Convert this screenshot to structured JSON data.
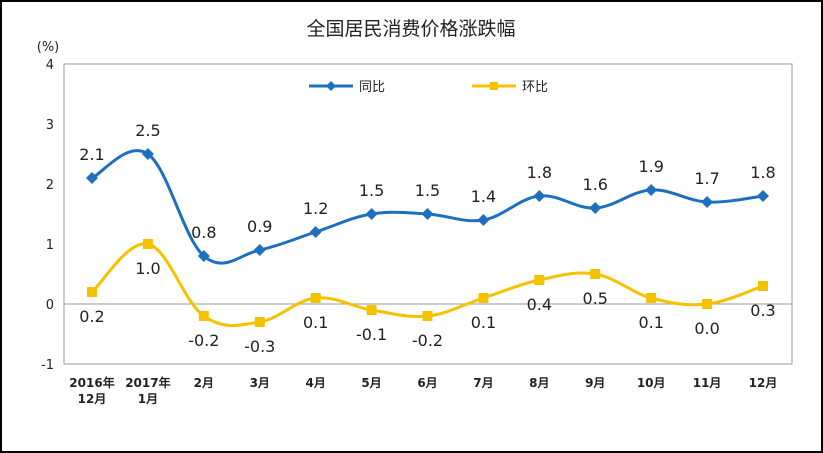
{
  "chart_data": {
    "type": "line",
    "title": "全国居民消费价格涨跌幅",
    "ylabel": "(%)",
    "ylim": [
      -1,
      4
    ],
    "yticks": [
      "4",
      "3",
      "2",
      "1",
      "0",
      "-1"
    ],
    "categories": [
      [
        "2016年",
        "12月"
      ],
      [
        "2017年",
        "1月"
      ],
      [
        "2月"
      ],
      [
        "3月"
      ],
      [
        "4月"
      ],
      [
        "5月"
      ],
      [
        "6月"
      ],
      [
        "7月"
      ],
      [
        "8月"
      ],
      [
        "9月"
      ],
      [
        "10月"
      ],
      [
        "11月"
      ],
      [
        "12月"
      ]
    ],
    "legend_position": "top-center",
    "series": [
      {
        "name": "同比",
        "color": "#1f6fbf",
        "marker": "diamond",
        "values": [
          2.1,
          2.5,
          0.8,
          0.9,
          1.2,
          1.5,
          1.5,
          1.4,
          1.8,
          1.6,
          1.9,
          1.7,
          1.8
        ],
        "labels": [
          "2.1",
          "2.5",
          "0.8",
          "0.9",
          "1.2",
          "1.5",
          "1.5",
          "1.4",
          "1.8",
          "1.6",
          "1.9",
          "1.7",
          "1.8"
        ]
      },
      {
        "name": "环比",
        "color": "#f5c200",
        "marker": "square",
        "values": [
          0.2,
          1.0,
          -0.2,
          -0.3,
          0.1,
          -0.1,
          -0.2,
          0.1,
          0.4,
          0.5,
          0.1,
          0.0,
          0.3
        ],
        "labels": [
          "0.2",
          "1.0",
          "-0.2",
          "-0.3",
          "0.1",
          "-0.1",
          "-0.2",
          "0.1",
          "0.4",
          "0.5",
          "0.1",
          "0.0",
          "0.3"
        ]
      }
    ]
  }
}
